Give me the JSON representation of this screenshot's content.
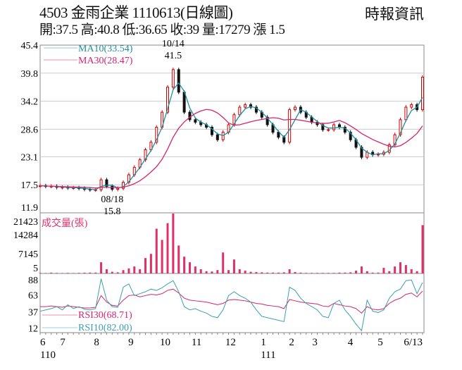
{
  "header": {
    "title": "4503  金雨企業 1110613(日線圖)",
    "source": "時報資訊",
    "stats": "開:37.5 高:40.8 低:36.65 收:39 量:17279 漲 1.5"
  },
  "colors": {
    "up": "#d40000",
    "down": "#111111",
    "ma10": "#1a8fa0",
    "ma30": "#d6246e",
    "volume": "#e0306a",
    "rsi30": "#d6246e",
    "rsi10": "#3a9fb0"
  },
  "chart_data": {
    "type": "candlestick",
    "x_ticks": [
      {
        "label": "6",
        "index": 0
      },
      {
        "label": "7",
        "index": 3.6
      },
      {
        "label": "8",
        "index": 9.7
      },
      {
        "label": "9",
        "index": 15.9
      },
      {
        "label": "10",
        "index": 21.6
      },
      {
        "label": "11",
        "index": 27.3
      },
      {
        "label": "12",
        "index": 33.4
      },
      {
        "label": "1",
        "index": 39.8
      },
      {
        "label": "2",
        "index": 44.9
      },
      {
        "label": "3",
        "index": 49.1
      },
      {
        "label": "4",
        "index": 55.5
      },
      {
        "label": "5",
        "index": 60.9
      },
      {
        "label": "6/13",
        "index": 69
      }
    ],
    "year_labels": [
      {
        "label": "110",
        "index": 0
      },
      {
        "label": "111",
        "index": 39.8
      }
    ],
    "price": {
      "ylim": [
        11.9,
        45.4
      ],
      "y_ticks": [
        "45.4",
        "39.8",
        "34.2",
        "28.6",
        "23.1",
        "17.5",
        "11.9"
      ],
      "close": [
        17.3,
        17.2,
        17.2,
        17.0,
        17.0,
        16.9,
        16.9,
        16.8,
        16.6,
        16.5,
        16.5,
        18.5,
        17.2,
        16.6,
        16.8,
        18.0,
        19.5,
        21.0,
        22.5,
        24.5,
        26,
        29,
        32,
        37,
        40.5,
        36,
        32,
        30.5,
        30,
        29.5,
        29,
        27.5,
        26.5,
        28,
        29.5,
        31.5,
        33,
        33.5,
        33,
        32,
        31,
        29.5,
        28,
        27,
        26,
        32.5,
        33,
        32,
        31,
        30,
        29.5,
        28.5,
        28.5,
        29.5,
        29,
        28,
        26.5,
        25,
        23,
        24,
        23.5,
        23.6,
        24,
        25.5,
        27.5,
        30.5,
        33,
        33.5,
        32.5,
        39
      ],
      "legend": [
        {
          "label": "MA10(33.54)",
          "key": "ma10"
        },
        {
          "label": "MA30(28.47)",
          "key": "ma30"
        }
      ],
      "annotations": [
        {
          "date": "10/14",
          "value": "41.5",
          "index": 24
        },
        {
          "date": "08/18",
          "value": "15.8",
          "index": 13
        }
      ]
    },
    "volume": {
      "label": "成交量(張)",
      "ylim": [
        0,
        21423
      ],
      "y_ticks": [
        "21423",
        "14284",
        "7145",
        "5"
      ],
      "values": [
        200,
        150,
        300,
        200,
        150,
        200,
        150,
        200,
        250,
        300,
        300,
        4000,
        1500,
        600,
        400,
        1200,
        1800,
        2500,
        1500,
        5500,
        7000,
        16000,
        12000,
        18000,
        21423,
        10000,
        6000,
        4000,
        2500,
        1500,
        800,
        700,
        1200,
        7500,
        1200,
        5000,
        1500,
        1000,
        600,
        500,
        400,
        300,
        300,
        300,
        400,
        1500,
        500,
        300,
        200,
        200,
        200,
        200,
        200,
        200,
        300,
        300,
        400,
        1000,
        2500,
        800,
        300,
        300,
        2000,
        800,
        2500,
        4000,
        3000,
        1500,
        800,
        17279
      ]
    },
    "rsi": {
      "ylim": [
        5,
        95
      ],
      "y_ticks": [
        "88",
        "63",
        "37",
        "12"
      ],
      "series": [
        {
          "name": "RSI30(68.71)",
          "key": "rsi30",
          "values": [
            45,
            45,
            46,
            45,
            44,
            46,
            45,
            44,
            43,
            43,
            44,
            62,
            52,
            47,
            46,
            55,
            62,
            63,
            60,
            62,
            64,
            63,
            65,
            70,
            72,
            66,
            58,
            55,
            54,
            53,
            52,
            50,
            48,
            50,
            55,
            56,
            55,
            54,
            52,
            50,
            49,
            47,
            46,
            45,
            42,
            56,
            54,
            52,
            51,
            50,
            49,
            46,
            45,
            50,
            48,
            46,
            45,
            42,
            35,
            45,
            41,
            40,
            42,
            50,
            55,
            58,
            64,
            66,
            60,
            69
          ]
        },
        {
          "name": "RSI10(82.00)",
          "key": "rsi10",
          "values": [
            38,
            40,
            42,
            45,
            40,
            48,
            42,
            45,
            41,
            40,
            42,
            88,
            55,
            45,
            44,
            75,
            80,
            62,
            65,
            68,
            72,
            70,
            74,
            80,
            85,
            68,
            45,
            40,
            42,
            38,
            35,
            30,
            28,
            40,
            62,
            68,
            62,
            58,
            52,
            40,
            30,
            28,
            26,
            24,
            22,
            75,
            70,
            58,
            50,
            45,
            40,
            30,
            28,
            50,
            55,
            40,
            30,
            18,
            8,
            55,
            38,
            36,
            40,
            58,
            68,
            72,
            85,
            86,
            65,
            82
          ]
        }
      ]
    }
  }
}
